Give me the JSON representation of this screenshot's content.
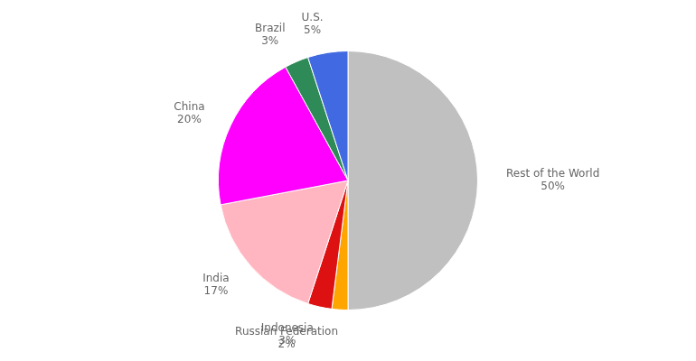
{
  "chart_data": {
    "type": "pie",
    "categories": [
      "Rest of the World",
      "Russian Federation",
      "Indonesia",
      "India",
      "China",
      "Brazil",
      "U.S."
    ],
    "values": [
      50,
      2,
      3,
      17,
      20,
      3,
      5
    ],
    "value_labels": [
      "50%",
      "2%",
      "3%",
      "17%",
      "20%",
      "3%",
      "5%"
    ],
    "colors": [
      "#c0c0c0",
      "#ffa500",
      "#dd1111",
      "#ffb6c1",
      "#ff00ff",
      "#2e8b57",
      "#4169e1"
    ],
    "data_labels": true
  }
}
